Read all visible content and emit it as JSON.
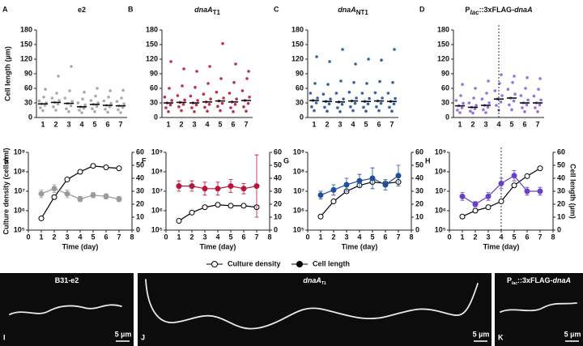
{
  "chart_data": [
    {
      "panel": "A",
      "type": "strip",
      "title": [
        {
          "text": "e2"
        }
      ],
      "ylabel": "Cell length (µm)",
      "color": "#a0a0a0",
      "categories": [
        "1",
        "2",
        "3",
        "4",
        "5",
        "6",
        "7"
      ],
      "values": [
        [
          14,
          20,
          25,
          28,
          30,
          34,
          42,
          58
        ],
        [
          15,
          22,
          28,
          31,
          35,
          40,
          50,
          85
        ],
        [
          12,
          18,
          24,
          29,
          33,
          40,
          55,
          105
        ],
        [
          10,
          15,
          19,
          22,
          26,
          30,
          38,
          52
        ],
        [
          12,
          18,
          23,
          27,
          30,
          35,
          44,
          60
        ],
        [
          11,
          17,
          22,
          25,
          29,
          34,
          42,
          55
        ],
        [
          10,
          16,
          21,
          24,
          28,
          33,
          40,
          56
        ]
      ],
      "medians": [
        28,
        31,
        29,
        22,
        27,
        25,
        24
      ],
      "ylim": [
        0,
        180
      ],
      "yticks": [
        0,
        30,
        60,
        90,
        120,
        150,
        180
      ]
    },
    {
      "panel": "B",
      "type": "strip",
      "title": [
        {
          "text": "dnaA",
          "italic": true
        },
        {
          "text": "T1",
          "sub": true
        }
      ],
      "color": "#b5173b",
      "categories": [
        "1",
        "2",
        "3",
        "4",
        "5",
        "6",
        "7"
      ],
      "values": [
        [
          12,
          20,
          26,
          30,
          35,
          42,
          60,
          115
        ],
        [
          14,
          22,
          27,
          31,
          36,
          45,
          65,
          100
        ],
        [
          12,
          20,
          26,
          30,
          35,
          44,
          62,
          95
        ],
        [
          13,
          21,
          27,
          32,
          38,
          48,
          70,
          105
        ],
        [
          14,
          23,
          29,
          34,
          40,
          52,
          80,
          152
        ],
        [
          12,
          20,
          27,
          32,
          38,
          50,
          72,
          110
        ],
        [
          13,
          22,
          29,
          35,
          42,
          55,
          80,
          95
        ]
      ],
      "medians": [
        30,
        31,
        30,
        32,
        34,
        32,
        35
      ],
      "ylim": [
        0,
        180
      ],
      "yticks": [
        0,
        30,
        60,
        90,
        120,
        150,
        180
      ]
    },
    {
      "panel": "C",
      "type": "strip",
      "title": [
        {
          "text": "dnaA",
          "italic": true
        },
        {
          "text": "NT1",
          "sub": true
        }
      ],
      "color": "#1f4e9e",
      "categories": [
        "1",
        "2",
        "3",
        "4",
        "5",
        "6",
        "7"
      ],
      "values": [
        [
          14,
          22,
          30,
          35,
          40,
          50,
          70,
          125
        ],
        [
          13,
          21,
          28,
          33,
          38,
          48,
          68,
          115
        ],
        [
          12,
          20,
          27,
          32,
          38,
          50,
          75,
          140
        ],
        [
          14,
          22,
          29,
          34,
          40,
          52,
          72,
          110
        ],
        [
          13,
          21,
          28,
          33,
          39,
          50,
          70,
          120
        ],
        [
          14,
          22,
          29,
          34,
          40,
          51,
          74,
          118
        ],
        [
          13,
          21,
          28,
          33,
          39,
          50,
          72,
          140
        ]
      ],
      "medians": [
        35,
        33,
        32,
        34,
        33,
        34,
        33
      ],
      "ylim": [
        0,
        180
      ],
      "yticks": [
        0,
        30,
        60,
        90,
        120,
        150,
        180
      ]
    },
    {
      "panel": "D",
      "type": "strip",
      "title": [
        {
          "text": "P"
        },
        {
          "text": "lac",
          "italic": true,
          "sub": true
        },
        {
          "text": "::3xFLAG-"
        },
        {
          "text": "dnaA",
          "italic": true
        }
      ],
      "color": "#8663e3",
      "categories": [
        "1",
        "2",
        "3",
        "4",
        "5",
        "6",
        "7"
      ],
      "values": [
        [
          10,
          15,
          20,
          24,
          29,
          35,
          45,
          68
        ],
        [
          9,
          13,
          18,
          21,
          25,
          30,
          40,
          60
        ],
        [
          10,
          16,
          21,
          25,
          30,
          38,
          50,
          75
        ],
        [
          15,
          25,
          32,
          38,
          45,
          55,
          70,
          88
        ],
        [
          16,
          26,
          34,
          40,
          48,
          58,
          72,
          85
        ],
        [
          12,
          20,
          26,
          30,
          36,
          45,
          60,
          82
        ],
        [
          12,
          20,
          26,
          30,
          36,
          44,
          58,
          80
        ]
      ],
      "medians": [
        24,
        21,
        25,
        38,
        40,
        30,
        30
      ],
      "ylim": [
        0,
        180
      ],
      "yticks": [
        0,
        30,
        60,
        90,
        120,
        150,
        180
      ],
      "vline": 4
    },
    {
      "panel": "E",
      "type": "line",
      "ylabel": "Culture density (cells/ml)",
      "xlabel": "Time (day)",
      "x": [
        1,
        2,
        3,
        4,
        5,
        6,
        7
      ],
      "xlim": [
        0,
        8
      ],
      "xticks": [
        0,
        1,
        2,
        3,
        4,
        5,
        6,
        7,
        8
      ],
      "log_y": true,
      "ylim": [
        100000,
        1000000000
      ],
      "yticks": [
        {
          "value": 100000,
          "label": "10⁵"
        },
        {
          "value": 1000000,
          "label": "10⁶"
        },
        {
          "value": 10000000,
          "label": "10⁷"
        },
        {
          "value": 100000000,
          "label": "10⁸"
        },
        {
          "value": 1000000000,
          "label": "10⁹"
        }
      ],
      "y2lim": [
        0,
        60
      ],
      "y2ticks": [
        0,
        10,
        20,
        30,
        40,
        50,
        60
      ],
      "series": [
        {
          "name": "Culture density",
          "color": "#000000",
          "marker": "open",
          "values": [
            400000,
            5000000,
            40000000,
            100000000,
            200000000,
            170000000,
            150000000
          ]
        },
        {
          "name": "Cell length",
          "color": "#9a9a9a",
          "marker": "filled",
          "axis": "y2",
          "values": [
            28,
            32,
            28,
            24,
            27,
            26,
            24
          ],
          "errors": [
            3,
            3,
            3,
            2,
            2,
            2,
            2
          ]
        }
      ]
    },
    {
      "panel": "F",
      "type": "line",
      "xlabel": "Time (day)",
      "x": [
        1,
        2,
        3,
        4,
        5,
        6,
        7
      ],
      "xlim": [
        0,
        8
      ],
      "xticks": [
        0,
        1,
        2,
        3,
        4,
        5,
        6,
        7,
        8
      ],
      "log_y": true,
      "ylim": [
        100000,
        1000000000
      ],
      "yticks": [
        {
          "value": 100000,
          "label": "10⁵"
        },
        {
          "value": 1000000,
          "label": "10⁶"
        },
        {
          "value": 10000000,
          "label": "10⁷"
        },
        {
          "value": 100000000,
          "label": "10⁸"
        },
        {
          "value": 1000000000,
          "label": "10⁹"
        }
      ],
      "y2lim": [
        0,
        60
      ],
      "y2ticks": [
        0,
        10,
        20,
        30,
        40,
        50,
        60
      ],
      "series": [
        {
          "color": "#000000",
          "marker": "open",
          "values": [
            300000,
            800000,
            1500000,
            2000000,
            1800000,
            1800000,
            1500000
          ]
        },
        {
          "color": "#b5173b",
          "marker": "filled",
          "axis": "y2",
          "values": [
            34,
            34,
            32,
            32,
            34,
            32,
            34
          ],
          "errors": [
            4,
            4,
            5,
            5,
            5,
            4,
            24
          ]
        }
      ]
    },
    {
      "panel": "G",
      "type": "line",
      "xlabel": "Time (day)",
      "x": [
        1,
        2,
        3,
        4,
        5,
        6,
        7
      ],
      "xlim": [
        0,
        8
      ],
      "xticks": [
        0,
        1,
        2,
        3,
        4,
        5,
        6,
        7,
        8
      ],
      "log_y": true,
      "ylim": [
        100000,
        1000000000
      ],
      "yticks": [
        {
          "value": 100000,
          "label": "10⁵"
        },
        {
          "value": 1000000,
          "label": "10⁶"
        },
        {
          "value": 10000000,
          "label": "10⁷"
        },
        {
          "value": 100000000,
          "label": "10⁸"
        },
        {
          "value": 1000000000,
          "label": "10⁹"
        }
      ],
      "y2lim": [
        0,
        60
      ],
      "y2ticks": [
        0,
        10,
        20,
        30,
        40,
        50,
        60
      ],
      "series": [
        {
          "color": "#000000",
          "marker": "open",
          "values": [
            500000,
            3000000,
            10000000,
            20000000,
            30000000,
            25000000,
            30000000
          ]
        },
        {
          "color": "#1f4e9e",
          "marker": "filled",
          "axis": "y2",
          "values": [
            27,
            31,
            35,
            38,
            40,
            35,
            42
          ],
          "errors": [
            3,
            4,
            5,
            5,
            8,
            4,
            8
          ]
        }
      ]
    },
    {
      "panel": "H",
      "type": "line",
      "xlabel": "Time (day)",
      "y2label": "Cell length (µm)",
      "x": [
        1,
        2,
        3,
        4,
        5,
        6,
        7
      ],
      "xlim": [
        0,
        8
      ],
      "xticks": [
        0,
        1,
        2,
        3,
        4,
        5,
        6,
        7,
        8
      ],
      "log_y": true,
      "vline": 4,
      "ylim": [
        100000,
        1000000000
      ],
      "yticks": [
        {
          "value": 100000,
          "label": "10⁵"
        },
        {
          "value": 1000000,
          "label": "10⁶"
        },
        {
          "value": 10000000,
          "label": "10⁷"
        },
        {
          "value": 100000000,
          "label": "10⁸"
        },
        {
          "value": 1000000000,
          "label": "10⁹"
        }
      ],
      "y2lim": [
        0,
        60
      ],
      "y2ticks": [
        0,
        10,
        20,
        30,
        40,
        50,
        60
      ],
      "series": [
        {
          "color": "#000000",
          "marker": "open",
          "values": [
            500000,
            1000000,
            1500000,
            3000000,
            20000000,
            60000000,
            150000000
          ]
        },
        {
          "color": "#6a3fc9",
          "marker": "filled",
          "axis": "y2",
          "values": [
            26,
            20,
            26,
            36,
            42,
            30,
            30
          ],
          "errors": [
            3,
            2,
            3,
            4,
            4,
            3,
            3
          ]
        }
      ]
    }
  ],
  "images": [
    {
      "panel": "I",
      "label": [
        {
          "text": "B31-e2"
        }
      ],
      "scale": "5 µm"
    },
    {
      "panel": "J",
      "label": [
        {
          "text": "dnaA",
          "italic": true
        },
        {
          "text": "T1",
          "sub": true
        }
      ],
      "scale": "5 µm"
    },
    {
      "panel": "K",
      "label": [
        {
          "text": "P"
        },
        {
          "text": "lac",
          "italic": true,
          "sub": true
        },
        {
          "text": "::3xFLAG-"
        },
        {
          "text": "dnaA",
          "italic": true
        }
      ],
      "scale": "5 µm"
    }
  ]
}
